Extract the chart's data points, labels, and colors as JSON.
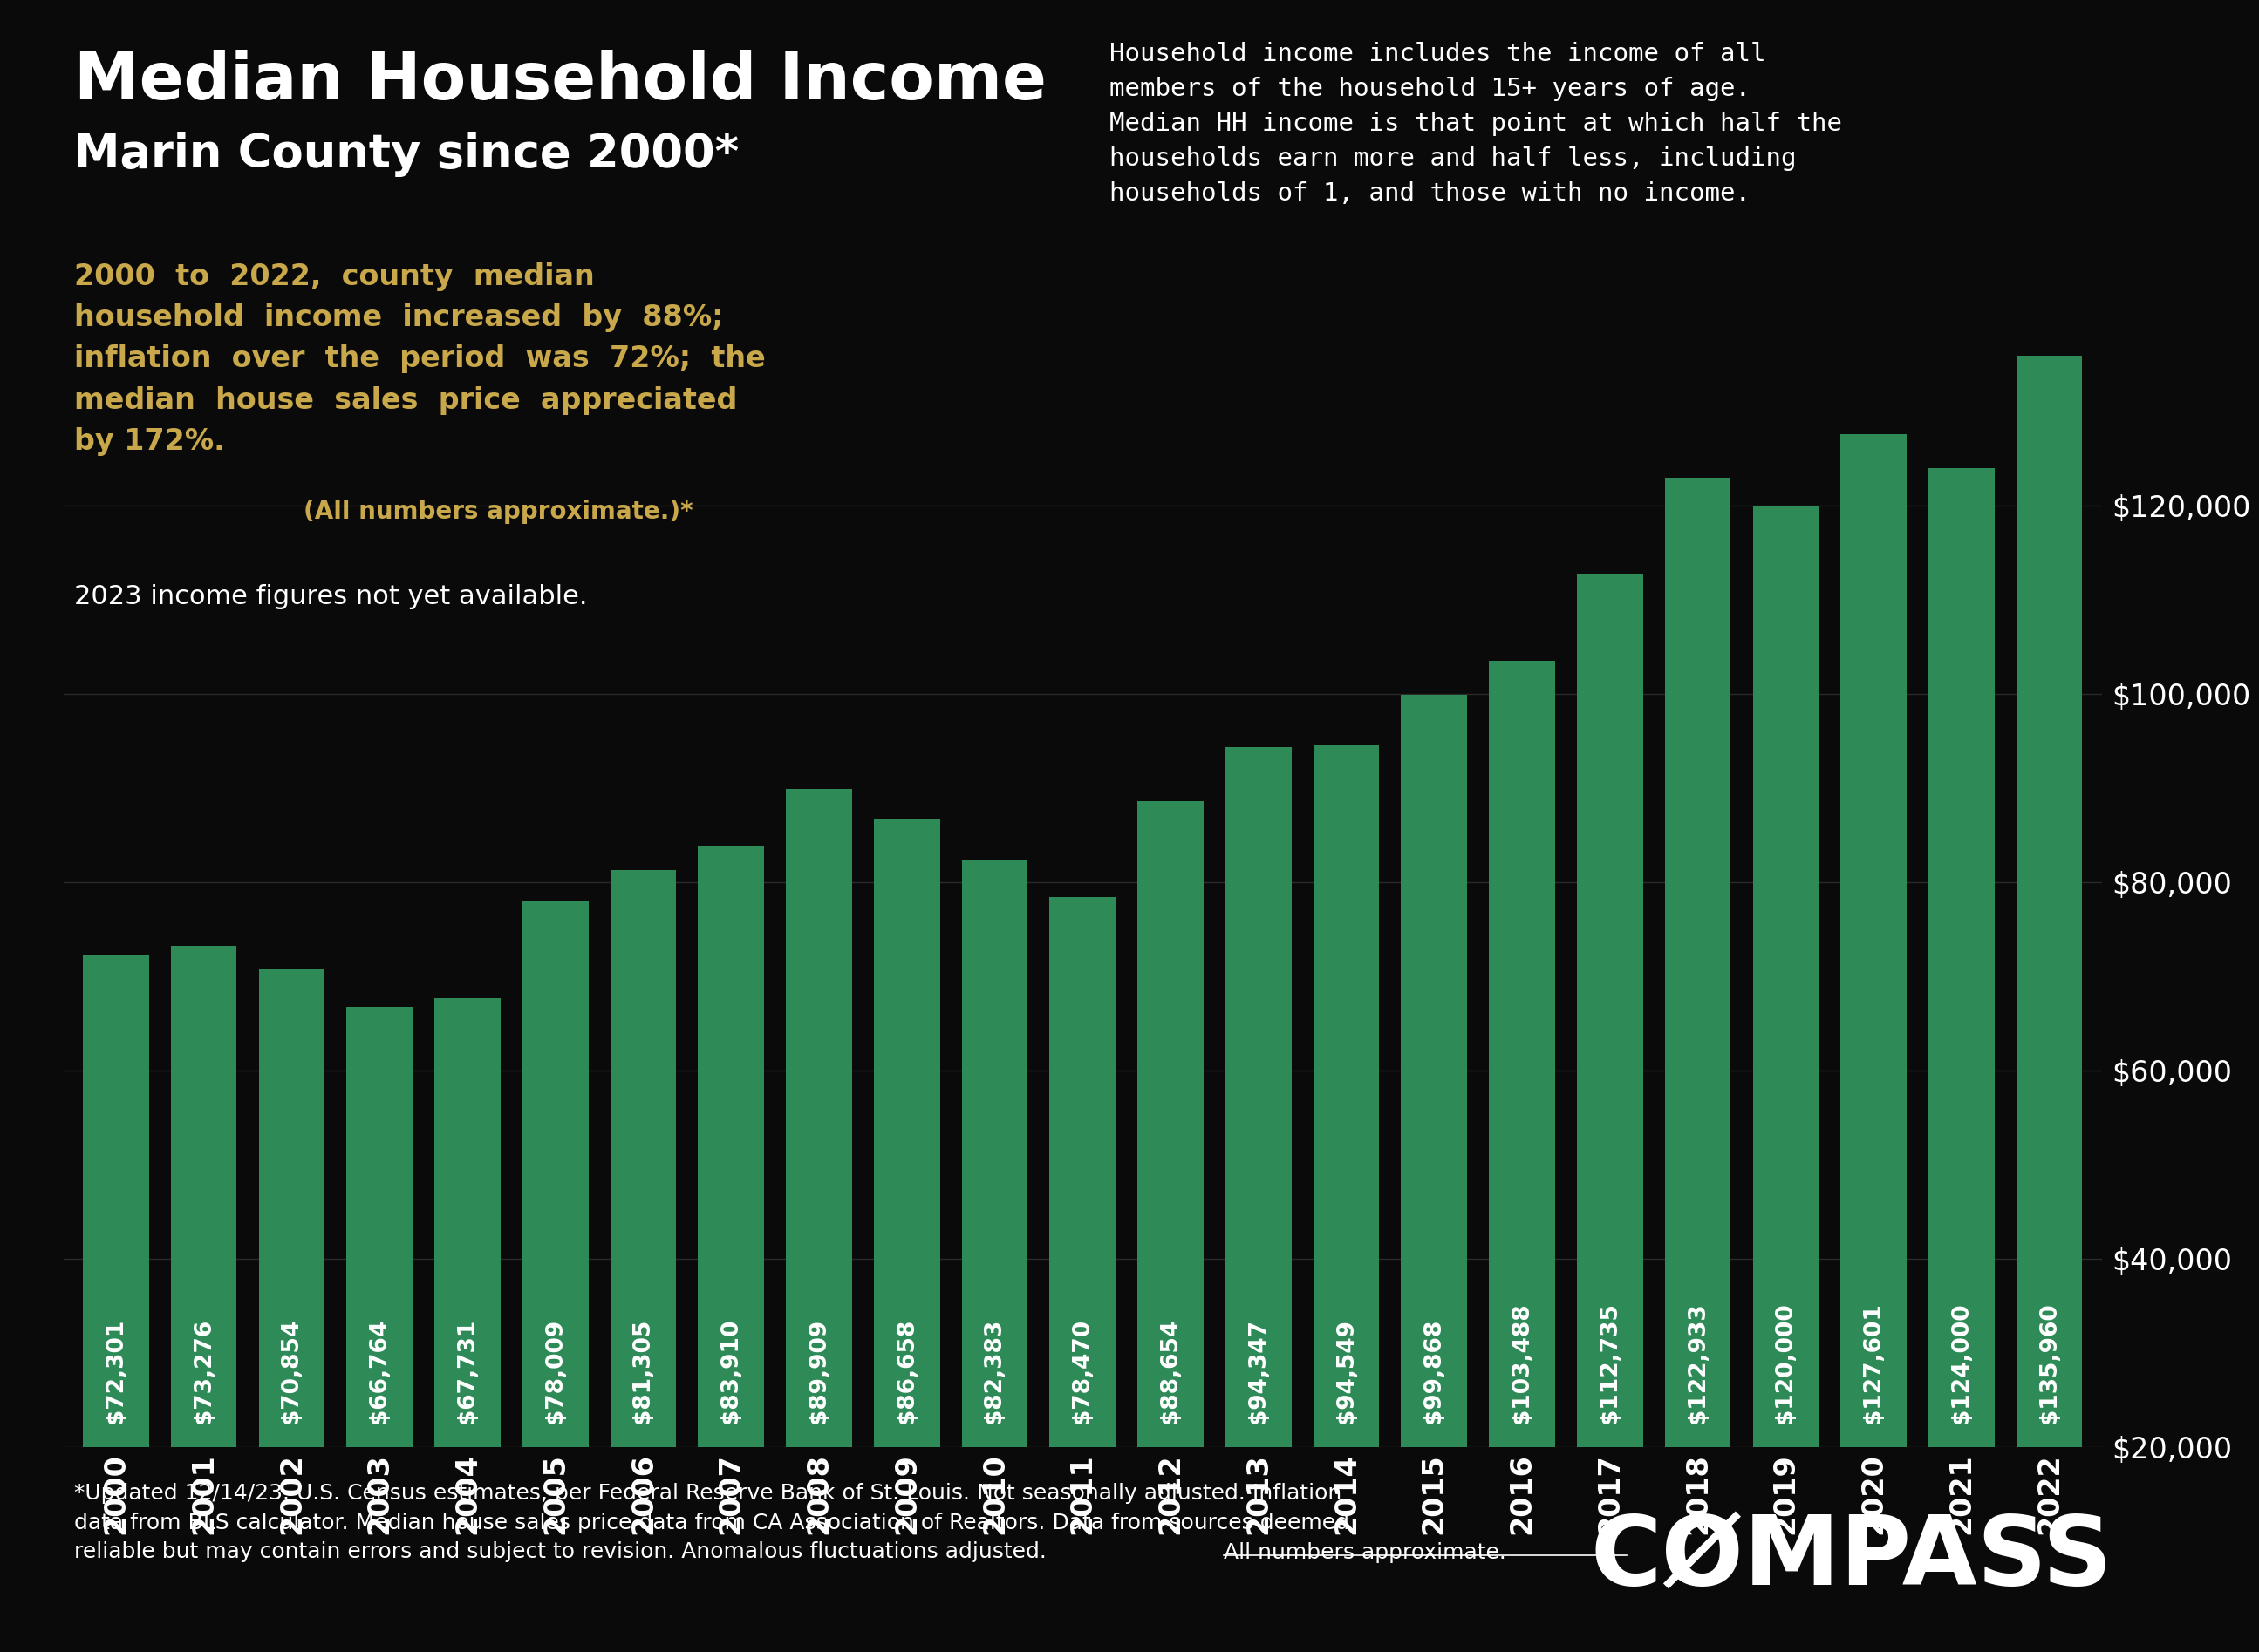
{
  "years": [
    2000,
    2001,
    2002,
    2003,
    2004,
    2005,
    2006,
    2007,
    2008,
    2009,
    2010,
    2011,
    2012,
    2013,
    2014,
    2015,
    2016,
    2017,
    2018,
    2019,
    2020,
    2021,
    2022
  ],
  "values": [
    72301,
    73276,
    70854,
    66764,
    67731,
    78009,
    81305,
    83910,
    89909,
    86658,
    82383,
    78470,
    88654,
    94347,
    94549,
    99868,
    103488,
    112735,
    122933,
    120000,
    127601,
    124000,
    135960
  ],
  "bar_color": "#2e8b57",
  "background_color": "#0a0a0a",
  "text_color": "#ffffff",
  "gold_color": "#c8a84b",
  "title_line1": "Median Household Income",
  "title_line2": "Marin County since 2000*",
  "gold_text_line1": "2000  to  2022,  county  median",
  "gold_text_line2": "household  income  increased  by  88%;",
  "gold_text_line3": "inflation  over  the  period  was  72%;  the",
  "gold_text_line4": "median  house  sales  price  appreciated",
  "gold_text_line5": "by 172%.",
  "gold_small": "(All numbers approximate.)*",
  "annotation_white": "2023 income figures not yet available.",
  "desc_line1": "Household income includes the income of all",
  "desc_line2": "members of the household 15+ years of age.",
  "desc_line3": "Median HH income is that point at which half the",
  "desc_line4": "households earn more and half less, including",
  "desc_line5": "households of 1, and those with no income.",
  "footer_line1": "*Updated 12/14/23. U.S. Census estimates, per Federal Reserve Bank of St. Louis. Not seasonally adjusted. Inflation",
  "footer_line2": "data from BLS calculator. Median house sales price data from CA Association of Realtors. Data from sources deemed",
  "footer_line3": "reliable but may contain errors and subject to revision. Anomalous fluctuations adjusted. ",
  "footer_underlined": "All numbers approximate.",
  "compass_text": "CØMPASS",
  "ylim_min": 20000,
  "ylim_max": 145000,
  "yticks": [
    20000,
    40000,
    60000,
    80000,
    100000,
    120000
  ],
  "title_fontsize": 54,
  "subtitle_fontsize": 38,
  "bar_label_fontsize": 19,
  "axis_tick_fontsize": 24,
  "gold_fontsize": 24,
  "gold_small_fontsize": 20,
  "white_note_fontsize": 22,
  "description_fontsize": 21,
  "footer_fontsize": 18,
  "compass_fontsize": 80
}
